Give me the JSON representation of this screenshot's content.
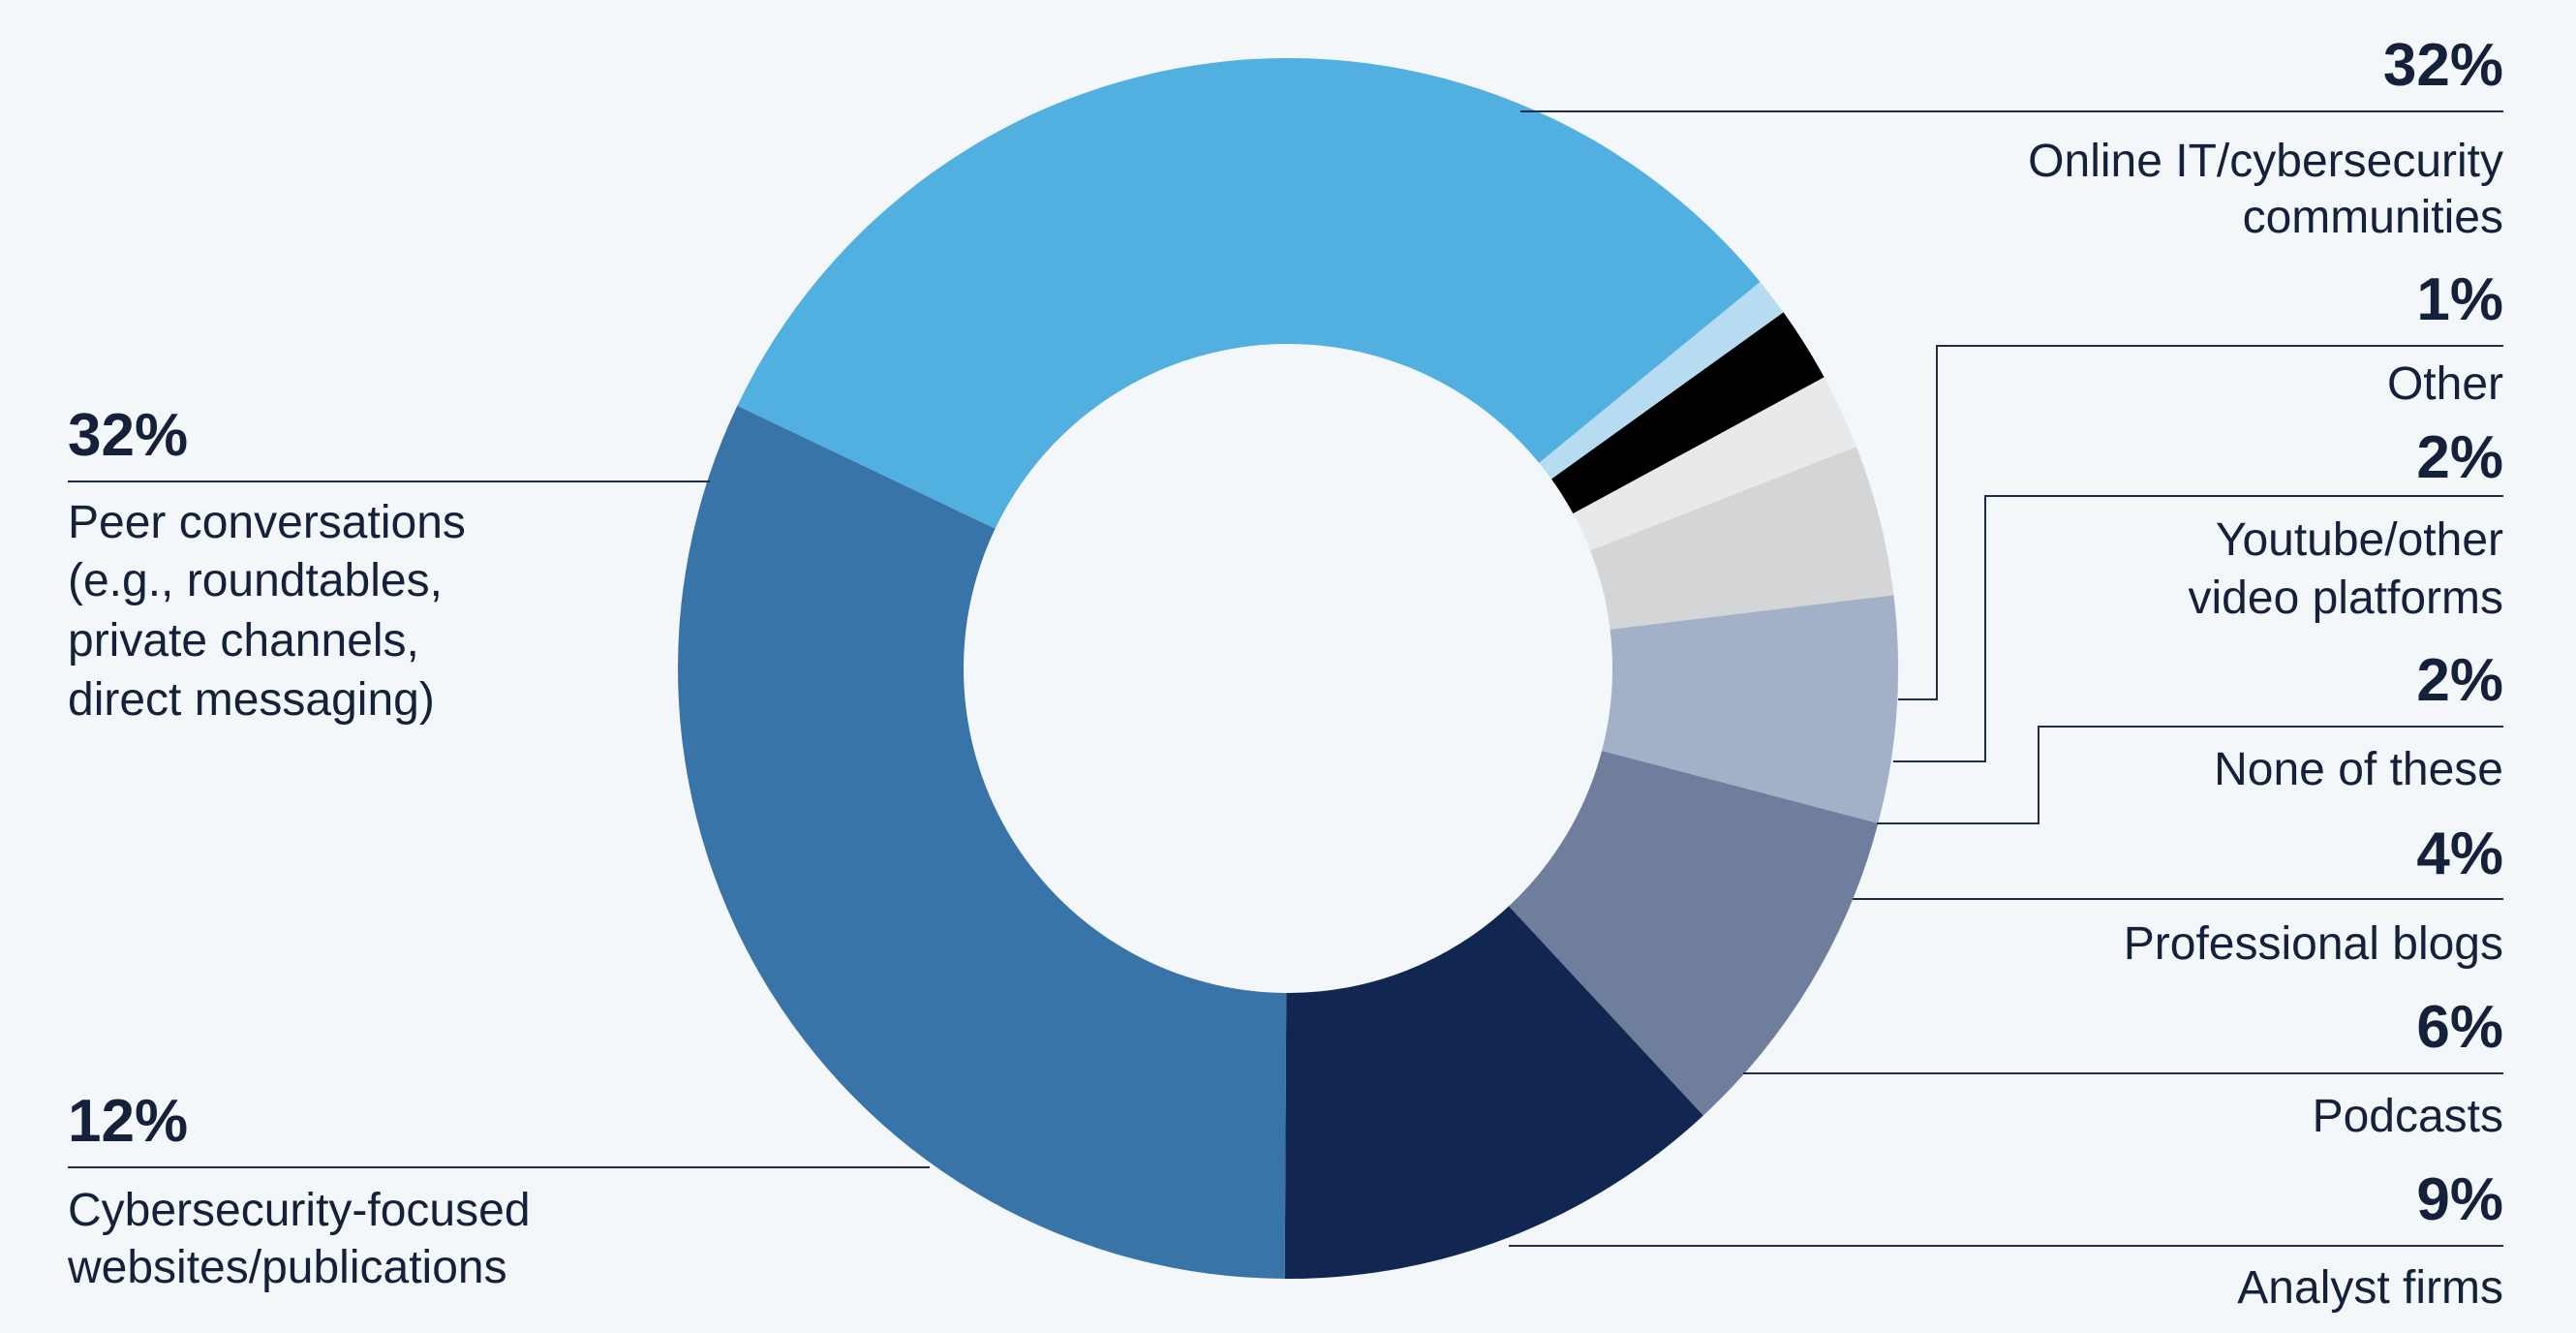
{
  "chart_data": {
    "type": "pie",
    "donut": true,
    "title": "",
    "slices": [
      {
        "label": "Online IT/cybersecurity communities",
        "value": 32,
        "display": "32%",
        "color": "#52b0e0"
      },
      {
        "label": "Other",
        "value": 1,
        "display": "1%",
        "color": "#b7dcf2"
      },
      {
        "label": "Youtube/other video platforms",
        "value": 2,
        "display": "2%",
        "color": "#000000"
      },
      {
        "label": "None of these",
        "value": 2,
        "display": "2%",
        "color": "#e8e9ea"
      },
      {
        "label": "Professional blogs",
        "value": 4,
        "display": "4%",
        "color": "#d4d5d6"
      },
      {
        "label": "Podcasts",
        "value": 6,
        "display": "6%",
        "color": "#a3b1c8"
      },
      {
        "label": "Analyst firms",
        "value": 9,
        "display": "9%",
        "color": "#6e7e9c"
      },
      {
        "label": "Cybersecurity-focused websites/publications",
        "value": 12,
        "display": "12%",
        "color": "#112752"
      },
      {
        "label": "Peer conversations (e.g., roundtables, private channels, direct messaging)",
        "value": 32,
        "display": "32%",
        "color": "#3974a8"
      }
    ]
  },
  "labels": [
    {
      "pct": "32%",
      "lines": [
        "Online IT/cybersecurity",
        "communities"
      ]
    },
    {
      "pct": "1%",
      "lines": [
        "Other"
      ]
    },
    {
      "pct": "2%",
      "lines": [
        "Youtube/other",
        "video platforms"
      ]
    },
    {
      "pct": "2%",
      "lines": [
        "None of these"
      ]
    },
    {
      "pct": "4%",
      "lines": [
        "Professional blogs"
      ]
    },
    {
      "pct": "6%",
      "lines": [
        "Podcasts"
      ]
    },
    {
      "pct": "9%",
      "lines": [
        "Analyst firms"
      ]
    },
    {
      "pct": "12%",
      "lines": [
        "Cybersecurity-focused",
        "websites/publications"
      ]
    },
    {
      "pct": "32%",
      "lines": [
        "Peer conversations",
        "(e.g., roundtables,",
        "private channels,",
        "direct messaging)"
      ]
    }
  ],
  "colors": {
    "background": "#f3f7fa",
    "text": "#15213a",
    "leader": "#1e2d4d"
  }
}
